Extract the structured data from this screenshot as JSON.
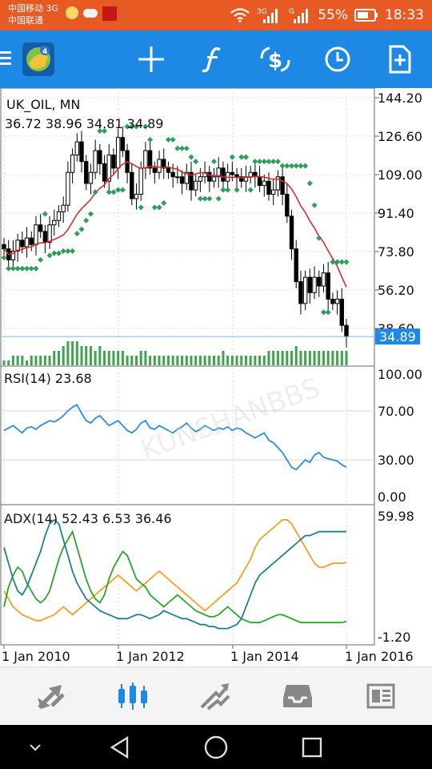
{
  "status_bar": {
    "carrier_1": "中国移动 3G",
    "carrier_2": "中国联通",
    "net_1": "3G",
    "net_2": "G",
    "battery": "55%",
    "time": "18:33"
  },
  "toolbar": {
    "menu_icon": "menu-icon",
    "logo_icon": "metatrader-logo-icon",
    "buttons": [
      "crosshair-icon",
      "function-icon",
      "symbol-dollar-icon",
      "clock-icon",
      "new-order-icon"
    ]
  },
  "chart": {
    "symbol_label": "UK_OIL, MN",
    "ohlc_label": "36.72 38.96 34.81 34.89",
    "current_price": "34.89",
    "price_ticks": [
      "144.20",
      "126.60",
      "109.00",
      "91.40",
      "73.80",
      "56.20",
      "38.60"
    ],
    "rsi_label": "RSI(14) 23.68",
    "rsi_ticks": [
      "100.00",
      "70.00",
      "30.00",
      "0.00"
    ],
    "adx_label": "ADX(14) 52.43 6.53 36.46",
    "adx_ticks": [
      "59.98",
      "-1.20"
    ],
    "date_ticks": [
      "1 Jan 2010",
      "1 Jan 2012",
      "1 Jan 2014",
      "1 Jan 2016"
    ],
    "colors": {
      "bull": "#000000",
      "bear": "#000000",
      "ma": "#d32f2f",
      "sar": "#2e9e5b",
      "volume": "#3fa34d",
      "rsi": "#2a8fd4",
      "adx_main": "#1f7f8f",
      "adx_plus": "#2aa52a",
      "adx_minus": "#f0a020",
      "price_line": "#7fb9e0"
    }
  },
  "chart_data": {
    "type": "line",
    "title": "UK_OIL, MN",
    "price": {
      "close": [
        75,
        70,
        74,
        79,
        76,
        80,
        77,
        86,
        83,
        78,
        86,
        88,
        92,
        95,
        110,
        118,
        124,
        115,
        105,
        110,
        120,
        114,
        106,
        118,
        112,
        126,
        120,
        110,
        98,
        100,
        112,
        120,
        112,
        110,
        116,
        112,
        110,
        108,
        108,
        105,
        110,
        102,
        106,
        108,
        110,
        106,
        108,
        112,
        106,
        110,
        109,
        108,
        106,
        108,
        110,
        108,
        104,
        106,
        100,
        102,
        108,
        100,
        90,
        75,
        60,
        50,
        62,
        55,
        62,
        58,
        64,
        52,
        50,
        52,
        40,
        34.89
      ],
      "ylim": [
        38.6,
        144.2
      ],
      "ma_period": 14
    },
    "volume": {
      "values": [
        1,
        1,
        2,
        2,
        2,
        1,
        2,
        2,
        2,
        2,
        2,
        3,
        3,
        4,
        5,
        5,
        5,
        4,
        4,
        4,
        3,
        4,
        3,
        3,
        3,
        3,
        3,
        2,
        2,
        2,
        3,
        3,
        2,
        2,
        2,
        2,
        2,
        2,
        2,
        2,
        2,
        2,
        2,
        2,
        2,
        2,
        2,
        2,
        3,
        2,
        2,
        2,
        2,
        2,
        2,
        2,
        2,
        2,
        3,
        3,
        3,
        3,
        3,
        3,
        4,
        3,
        3,
        3,
        3,
        3,
        3,
        3,
        3,
        3,
        3,
        3
      ]
    },
    "rsi": {
      "values": [
        54,
        56,
        58,
        55,
        52,
        56,
        57,
        55,
        58,
        60,
        62,
        61,
        63,
        66,
        70,
        73,
        75,
        68,
        62,
        60,
        64,
        66,
        62,
        58,
        60,
        62,
        58,
        54,
        52,
        55,
        60,
        62,
        56,
        55,
        58,
        56,
        54,
        52,
        55,
        57,
        60,
        56,
        53,
        55,
        58,
        56,
        54,
        56,
        55,
        57,
        54,
        56,
        55,
        52,
        50,
        48,
        50,
        52,
        46,
        44,
        40,
        36,
        30,
        24,
        22,
        26,
        30,
        28,
        34,
        36,
        32,
        31,
        30,
        29,
        26,
        24
      ],
      "ylim": [
        0,
        100
      ]
    },
    "adx": {
      "main": [
        44,
        36,
        28,
        22,
        20,
        24,
        30,
        36,
        42,
        50,
        56,
        58,
        56,
        48,
        40,
        32,
        26,
        22,
        18,
        16,
        14,
        12,
        11,
        10,
        9,
        8,
        8,
        8,
        9,
        10,
        10,
        9,
        8,
        9,
        10,
        12,
        11,
        10,
        9,
        8,
        8,
        7,
        6,
        5,
        5,
        4,
        4,
        3,
        3,
        3,
        4,
        5,
        8,
        14,
        20,
        26,
        30,
        32,
        34,
        36,
        38,
        40,
        42,
        44,
        46,
        48,
        50,
        50,
        51,
        52,
        52,
        52,
        52,
        52,
        52,
        52
      ],
      "plus": [
        14,
        24,
        30,
        34,
        32,
        26,
        22,
        18,
        16,
        18,
        22,
        30,
        38,
        44,
        48,
        52,
        44,
        36,
        28,
        22,
        18,
        16,
        20,
        28,
        34,
        38,
        42,
        40,
        34,
        28,
        26,
        24,
        20,
        18,
        16,
        14,
        16,
        18,
        20,
        18,
        16,
        14,
        12,
        11,
        10,
        9,
        9,
        10,
        12,
        14,
        12,
        10,
        8,
        7,
        6,
        6,
        6,
        7,
        8,
        9,
        10,
        10,
        9,
        8,
        7,
        6,
        6,
        6,
        6,
        6,
        6,
        6,
        6,
        6,
        6,
        6.53
      ],
      "minus": [
        22,
        18,
        14,
        12,
        10,
        9,
        8,
        7,
        7,
        8,
        9,
        10,
        12,
        14,
        12,
        10,
        12,
        14,
        16,
        18,
        20,
        22,
        24,
        26,
        28,
        30,
        28,
        26,
        24,
        22,
        24,
        26,
        28,
        30,
        32,
        30,
        28,
        26,
        24,
        22,
        20,
        18,
        16,
        14,
        12,
        14,
        16,
        18,
        20,
        22,
        24,
        26,
        30,
        34,
        38,
        44,
        48,
        50,
        52,
        54,
        56,
        58,
        58,
        56,
        52,
        48,
        44,
        40,
        36,
        34,
        34,
        35,
        36,
        36,
        36,
        36.46
      ],
      "ylim": [
        -1.2,
        59.98
      ]
    },
    "x": [
      "1 Jan 2010",
      "1 Jan 2012",
      "1 Jan 2014",
      "1 Jan 2016"
    ]
  },
  "bottom_nav": [
    "quotes-icon",
    "chart-icon",
    "trade-icon",
    "history-icon",
    "news-icon"
  ],
  "system_nav": [
    "back-icon",
    "home-icon",
    "recents-icon",
    "notification-chevron-icon"
  ]
}
